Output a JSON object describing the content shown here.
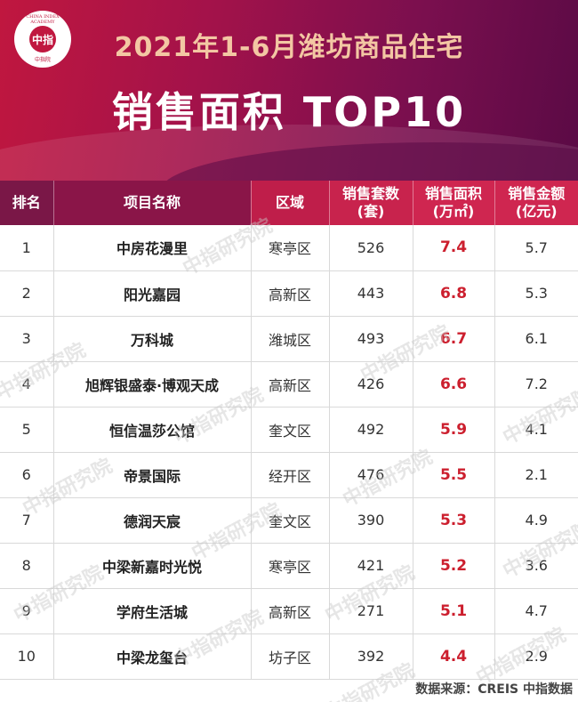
{
  "header": {
    "logo_ring_text": "CHINA INDEX ACADEMY",
    "logo_mark": "中指",
    "logo_bottom_text": "中指院",
    "title_line1": "2021年1-6月潍坊商品住宅",
    "title_line2": "销售面积 TOP10"
  },
  "table": {
    "columns": [
      "排名",
      "项目名称",
      "区域",
      "销售套数\n(套)",
      "销售面积\n(万㎡)",
      "销售金额\n(亿元)"
    ],
    "col_rank": "排名",
    "col_name": "项目名称",
    "col_area": "区域",
    "col_units_1": "销售套数",
    "col_units_2": "(套)",
    "col_sqm_1": "销售面积",
    "col_sqm_2": "(万㎡)",
    "col_amt_1": "销售金额",
    "col_amt_2": "(亿元)",
    "rows": [
      {
        "rank": "1",
        "name": "中房花漫里",
        "area": "寒亭区",
        "units": "526",
        "sqm": "7.4",
        "amt": "5.7"
      },
      {
        "rank": "2",
        "name": "阳光嘉园",
        "area": "高新区",
        "units": "443",
        "sqm": "6.8",
        "amt": "5.3"
      },
      {
        "rank": "3",
        "name": "万科城",
        "area": "潍城区",
        "units": "493",
        "sqm": "6.7",
        "amt": "6.1"
      },
      {
        "rank": "4",
        "name": "旭辉银盛泰·博观天成",
        "area": "高新区",
        "units": "426",
        "sqm": "6.6",
        "amt": "7.2"
      },
      {
        "rank": "5",
        "name": "恒信温莎公馆",
        "area": "奎文区",
        "units": "492",
        "sqm": "5.9",
        "amt": "4.1"
      },
      {
        "rank": "6",
        "name": "帝景国际",
        "area": "经开区",
        "units": "476",
        "sqm": "5.5",
        "amt": "2.1"
      },
      {
        "rank": "7",
        "name": "德润天宸",
        "area": "奎文区",
        "units": "390",
        "sqm": "5.3",
        "amt": "4.9"
      },
      {
        "rank": "8",
        "name": "中梁新嘉时光悦",
        "area": "寒亭区",
        "units": "421",
        "sqm": "5.2",
        "amt": "3.6"
      },
      {
        "rank": "9",
        "name": "学府生活城",
        "area": "高新区",
        "units": "271",
        "sqm": "5.1",
        "amt": "4.7"
      },
      {
        "rank": "10",
        "name": "中梁龙玺台",
        "area": "坊子区",
        "units": "392",
        "sqm": "4.4",
        "amt": "2.9"
      }
    ]
  },
  "watermark": "中指研究院",
  "footer": "数据来源：CREIS 中指数据"
}
